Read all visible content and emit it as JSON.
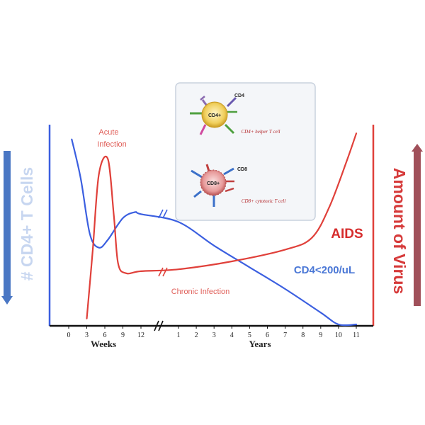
{
  "chart_data": {
    "type": "line",
    "title": "",
    "axis_labels": {
      "left": "# CD4+ T Cells",
      "right": "Amount of Virus",
      "x_weeks": "Weeks",
      "x_years": "Years"
    },
    "x_ticks_weeks": [
      "0",
      "3",
      "6",
      "9",
      "12"
    ],
    "x_ticks_years": [
      "1",
      "2",
      "3",
      "4",
      "5",
      "6",
      "7",
      "8",
      "9",
      "10",
      "11"
    ],
    "annotations": {
      "acute": "Acute\nInfection",
      "chronic": "Chronic Infection",
      "aids": "AIDS",
      "threshold": "CD4<200/uL"
    },
    "series": [
      {
        "name": "CD4+ T Cells",
        "color": "#3b5fe0",
        "points": [
          {
            "phase": "weeks",
            "x": 0.5,
            "y": 0.94
          },
          {
            "phase": "weeks",
            "x": 2,
            "y": 0.74
          },
          {
            "phase": "weeks",
            "x": 3.5,
            "y": 0.46
          },
          {
            "phase": "weeks",
            "x": 5,
            "y": 0.39
          },
          {
            "phase": "weeks",
            "x": 6.5,
            "y": 0.43
          },
          {
            "phase": "weeks",
            "x": 9,
            "y": 0.54
          },
          {
            "phase": "weeks",
            "x": 11,
            "y": 0.57
          },
          {
            "phase": "weeks",
            "x": 12,
            "y": 0.56
          },
          {
            "phase": "years",
            "x": 1,
            "y": 0.52
          },
          {
            "phase": "years",
            "x": 3,
            "y": 0.4
          },
          {
            "phase": "years",
            "x": 5,
            "y": 0.29
          },
          {
            "phase": "years",
            "x": 7,
            "y": 0.18
          },
          {
            "phase": "years",
            "x": 9,
            "y": 0.06
          },
          {
            "phase": "years",
            "x": 10,
            "y": 0.0
          },
          {
            "phase": "years",
            "x": 11,
            "y": 0.0
          }
        ]
      },
      {
        "name": "Amount of Virus",
        "color": "#e0403a",
        "points": [
          {
            "phase": "weeks",
            "x": 3,
            "y": 0.03
          },
          {
            "phase": "weeks",
            "x": 4,
            "y": 0.38
          },
          {
            "phase": "weeks",
            "x": 5,
            "y": 0.76
          },
          {
            "phase": "weeks",
            "x": 6.5,
            "y": 0.84
          },
          {
            "phase": "weeks",
            "x": 7.5,
            "y": 0.55
          },
          {
            "phase": "weeks",
            "x": 8.2,
            "y": 0.31
          },
          {
            "phase": "weeks",
            "x": 9.5,
            "y": 0.26
          },
          {
            "phase": "weeks",
            "x": 12,
            "y": 0.27
          },
          {
            "phase": "years",
            "x": 1,
            "y": 0.28
          },
          {
            "phase": "years",
            "x": 4,
            "y": 0.32
          },
          {
            "phase": "years",
            "x": 7,
            "y": 0.38
          },
          {
            "phase": "years",
            "x": 8.5,
            "y": 0.44
          },
          {
            "phase": "years",
            "x": 9.5,
            "y": 0.6
          },
          {
            "phase": "years",
            "x": 10.5,
            "y": 0.84
          },
          {
            "phase": "years",
            "x": 11,
            "y": 0.97
          }
        ]
      }
    ]
  },
  "inset": {
    "helper_tag": "CD4+",
    "helper_marker": "CD4",
    "helper_caption": "CD4+ helper T cell",
    "cytotoxic_tag": "CD8+",
    "cytotoxic_marker": "CD8",
    "cytotoxic_caption": "CD8+ cytotoxic T cell"
  },
  "colors": {
    "cd4": "#3b5fe0",
    "virus": "#e0403a",
    "arrow_left": "#4a77c4",
    "arrow_right": "#a0505a"
  }
}
